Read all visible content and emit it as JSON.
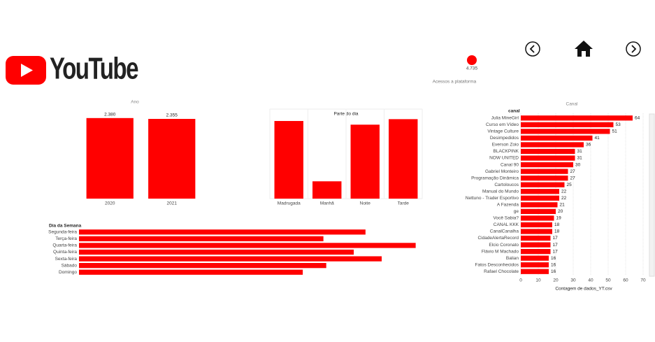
{
  "header": {
    "logo": "YouTube"
  },
  "kpi": {
    "value": "4.735",
    "caption": "Acessos a plataforma"
  },
  "chart_data": [
    {
      "type": "bar",
      "orientation": "vertical",
      "title": "Ano",
      "categories": [
        "2020",
        "2021"
      ],
      "values": [
        2380,
        2355
      ],
      "value_labels": [
        "2.380",
        "2.355"
      ],
      "color": "#ff0000",
      "ylim": [
        0,
        2500
      ]
    },
    {
      "type": "bar",
      "orientation": "vertical",
      "title": "Parte do dia",
      "categories": [
        "Madrugada",
        "Manhã",
        "Noite",
        "Tarde"
      ],
      "values": [
        1480,
        330,
        1410,
        1515
      ],
      "color": "#ff0000",
      "ylim": [
        0,
        1600
      ]
    },
    {
      "type": "bar",
      "orientation": "horizontal",
      "y_label": "Dia da Semana",
      "categories": [
        "Segunda-feira",
        "Terça-feira",
        "Quarta-feira",
        "Quinta-feira",
        "Sexta-feira",
        "Sábado",
        "Domingo"
      ],
      "values": [
        708,
        604,
        832,
        679,
        748,
        611,
        553
      ],
      "color": "#ff0000",
      "xlim": [
        0,
        900
      ]
    },
    {
      "type": "bar",
      "orientation": "horizontal",
      "title": "Canal",
      "y_label": "canal",
      "x_label": "Contagem de dados_YT.csv",
      "categories": [
        "Julia MineGirl",
        "Curso em Vídeo",
        "Vintage Culture",
        "Desimpedidos",
        "Everson Zoio",
        "BLACKPINK",
        "NOW UNITED",
        "Canal 90",
        "Gabriel Monteiro",
        "Programação Dinâmica",
        "Cartoloucos",
        "Manual do Mundo",
        "Nettuno - Trader Esportivo",
        "A Fazenda",
        "ge",
        "Você Sabia?",
        "CANAL KKK",
        "CanalCanalha",
        "CidadeAlertaRecord",
        "Elcio Coronato",
        "Flávio M Machado",
        "Balian",
        "Fatos Desconhecidos",
        "Rafael Chocolate"
      ],
      "values": [
        64,
        53,
        51,
        41,
        36,
        31,
        31,
        30,
        27,
        27,
        25,
        22,
        22,
        21,
        20,
        19,
        18,
        18,
        17,
        17,
        17,
        16,
        16,
        16
      ],
      "color": "#ff0000",
      "xlim": [
        0,
        72
      ],
      "xticks": [
        0,
        10,
        20,
        30,
        40,
        50,
        60,
        70
      ],
      "grid": true
    }
  ]
}
